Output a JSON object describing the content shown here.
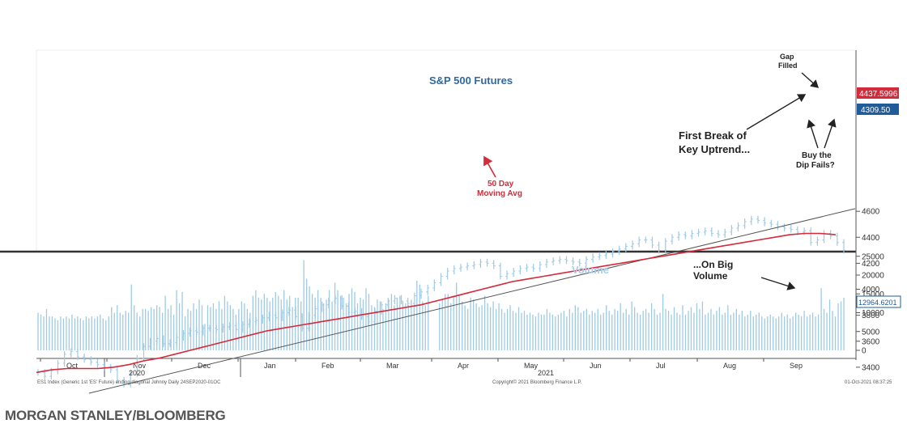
{
  "credit": "MORGAN STANLEY/BLOOMBERG",
  "chart_data": {
    "type": "ohlc_bar_with_volume",
    "title": "S&P 500 Futures",
    "volume_title": "Volume",
    "price_axis": {
      "ylim": [
        3200,
        4700
      ],
      "ticks": [
        3400,
        3600,
        3800,
        4000,
        4200,
        4400,
        4600
      ]
    },
    "volume_axis": {
      "ylim": [
        -1000,
        25500
      ],
      "ticks": [
        0,
        5000,
        10000,
        15000,
        20000,
        25000
      ]
    },
    "x_ticks": [
      "Oct",
      "Nov",
      "Dec",
      "Jan",
      "Feb",
      "Mar",
      "Apr",
      "May",
      "Jun",
      "Jul",
      "Aug",
      "Sep"
    ],
    "year_labels": [
      "2020",
      "2021"
    ],
    "price_series": {
      "name": "ES1 Index",
      "approx_closes": [
        3360,
        3330,
        3370,
        3430,
        3500,
        3520,
        3480,
        3460,
        3440,
        3420,
        3400,
        3380,
        3300,
        3270,
        3350,
        3470,
        3560,
        3600,
        3620,
        3580,
        3590,
        3630,
        3660,
        3680,
        3670,
        3700,
        3700,
        3690,
        3710,
        3720,
        3690,
        3730,
        3750,
        3760,
        3780,
        3800,
        3780,
        3820,
        3840,
        3790,
        3700,
        3800,
        3850,
        3880,
        3910,
        3930,
        3870,
        3820,
        3830,
        3790,
        3750,
        3830,
        3880,
        3910,
        3930,
        3910,
        3890,
        3950,
        3980,
        4010,
        4050,
        4100,
        4140,
        4160,
        4170,
        4180,
        4190,
        4210,
        4200,
        4180,
        4100,
        4120,
        4140,
        4160,
        4170,
        4160,
        4190,
        4210,
        4220,
        4230,
        4220,
        4210,
        4200,
        4230,
        4250,
        4260,
        4270,
        4290,
        4310,
        4330,
        4350,
        4380,
        4380,
        4340,
        4300,
        4370,
        4400,
        4420,
        4410,
        4430,
        4440,
        4450,
        4430,
        4420,
        4440,
        4470,
        4490,
        4520,
        4540,
        4530,
        4510,
        4500,
        4480,
        4470,
        4460,
        4440,
        4450,
        4360,
        4380,
        4430,
        4410,
        4360,
        4300
      ],
      "last_value_label": "4309.50"
    },
    "moving_average": {
      "name": "50 Day Moving Avg",
      "approx_values": [
        3360,
        3380,
        3390,
        3390,
        3390,
        3400,
        3420,
        3450,
        3470,
        3500,
        3530,
        3560,
        3590,
        3620,
        3650,
        3680,
        3700,
        3720,
        3740,
        3760,
        3780,
        3800,
        3820,
        3840,
        3860,
        3880,
        3910,
        3940,
        3970,
        4000,
        4030,
        4060,
        4080,
        4100,
        4120,
        4140,
        4160,
        4180,
        4200,
        4220,
        4240,
        4260,
        4280,
        4300,
        4320,
        4340,
        4360,
        4380,
        4400,
        4420,
        4430,
        4430,
        4420
      ],
      "last_value_label": "4437.5996"
    },
    "trendline": {
      "name": "Key Uptrend",
      "start": [
        "2020-11-02",
        3200
      ],
      "end": [
        "2021-09-30",
        4620
      ]
    },
    "volume_series": {
      "name": "Volume",
      "approx_values": [
        10000,
        9500,
        9000,
        11000,
        9000,
        9000,
        8500,
        8000,
        9000,
        8500,
        9000,
        8500,
        9500,
        8500,
        9000,
        8500,
        8000,
        9000,
        8500,
        9000,
        8500,
        9000,
        9500,
        8500,
        8000,
        9000,
        11500,
        10000,
        12000,
        10000,
        9500,
        10500,
        10000,
        17500,
        12000,
        10000,
        9000,
        11000,
        11000,
        10500,
        11500,
        11000,
        12000,
        11500,
        10000,
        14500,
        11000,
        12000,
        9500,
        16000,
        12500,
        15500,
        9000,
        11000,
        10500,
        12500,
        11000,
        13500,
        12000,
        7000,
        12000,
        11500,
        12500,
        11000,
        13000,
        11000,
        14500,
        13000,
        12000,
        11000,
        9500,
        11000,
        13000,
        12500,
        11000,
        10000,
        14500,
        16000,
        14000,
        13500,
        15000,
        14000,
        13000,
        14000,
        15500,
        14500,
        13500,
        16000,
        13500,
        14500,
        11500,
        14000,
        14000,
        13000,
        24000,
        19000,
        17000,
        15000,
        14000,
        16000,
        14000,
        12500,
        13500,
        16000,
        13000,
        18000,
        16000,
        14500,
        14000,
        12500,
        15000,
        16500,
        15500,
        12500,
        14000,
        13500,
        16500,
        15000,
        12000,
        11500,
        13500,
        13000,
        11000,
        12500,
        13500,
        15000,
        12000,
        14000,
        14500,
        13000,
        12500,
        12000,
        13500,
        11500,
        18500,
        17500,
        13000,
        12000,
        14500,
        16500,
        13000,
        12000,
        12500,
        13500,
        15000,
        15000,
        12500,
        14500,
        18000,
        14500,
        13000,
        12000,
        11000,
        14000,
        13500,
        12500,
        11500,
        12000,
        14500,
        12500,
        11500,
        13000,
        11000,
        12500,
        11000,
        10000,
        11000,
        12000,
        10500,
        10000,
        11500,
        10000,
        10500,
        9500,
        10000,
        9500,
        9000,
        10000,
        9500,
        9500,
        11000,
        10000,
        9500,
        9000,
        9500,
        10000,
        10500,
        9000,
        11000,
        10000,
        12000,
        11500,
        10000,
        10500,
        11000,
        9500,
        10500,
        10000,
        11000,
        9500,
        10000,
        12000,
        10500,
        9500,
        11000,
        10500,
        12500,
        10000,
        11000,
        9500,
        13000,
        11500,
        10000,
        9500,
        10500,
        11000,
        10000,
        12500,
        11000,
        9500,
        10000,
        15000,
        11000,
        10500,
        9500,
        11500,
        10000,
        9500,
        12000,
        9500,
        10500,
        11500,
        10000,
        12500,
        11000,
        13000,
        9500,
        10000,
        11000,
        9500,
        10500,
        11500,
        9500,
        10000,
        12000,
        9500,
        10000,
        11000,
        9500,
        10500,
        9000,
        9500,
        10500,
        9000,
        9500,
        10000,
        9000,
        8500,
        9000,
        9500,
        9000,
        8500,
        9000,
        10000,
        9000,
        9500,
        8500,
        9000,
        10000,
        9500,
        9000,
        10500,
        9000,
        9500,
        10000,
        9000,
        9500,
        16500,
        11000,
        10000,
        13500,
        10500,
        9000,
        12500,
        13000,
        14000
      ],
      "last_value_label": "12964.6201"
    },
    "annotations": {
      "gap_filled": "Gap\nFilled",
      "first_break": "First Break of\nKey Uptrend...",
      "buy_dip": "Buy the\nDip Fails?",
      "big_volume": "...On Big\nVolume"
    },
    "footer": {
      "left": "ES1 Index (Generic 1st 'ES' Future) ending diagonal Johnny  Daily 24SEP2020-01OC",
      "center": "Copyright© 2021 Bloomberg Finance L.P.",
      "right": "01-Oct-2021 08:37:25"
    },
    "colors": {
      "bars": "#9ecae4",
      "moving_average": "#d42a3a",
      "trendline": "#555555",
      "ma_label_bg": "#d42a3a",
      "last_label_bg": "#1f5c99",
      "title": "#2e6aa2",
      "volume_title": "#a6cfe8"
    },
    "grid": false,
    "legend": "none"
  }
}
